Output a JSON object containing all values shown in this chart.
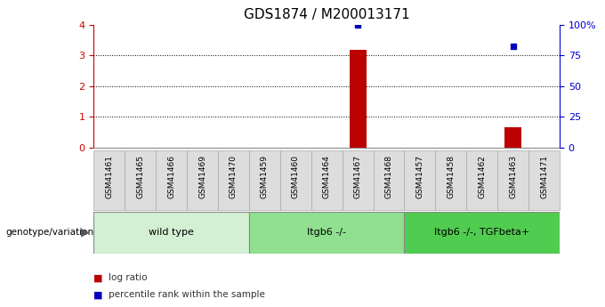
{
  "title": "GDS1874 / M200013171",
  "samples": [
    "GSM41461",
    "GSM41465",
    "GSM41466",
    "GSM41469",
    "GSM41470",
    "GSM41459",
    "GSM41460",
    "GSM41464",
    "GSM41467",
    "GSM41468",
    "GSM41457",
    "GSM41458",
    "GSM41462",
    "GSM41463",
    "GSM41471"
  ],
  "log_ratio": [
    0,
    0,
    0,
    0,
    0,
    0,
    0,
    0,
    3.18,
    0,
    0,
    0,
    0,
    0.65,
    0
  ],
  "percentile_rank": [
    null,
    null,
    null,
    null,
    null,
    null,
    null,
    null,
    100,
    null,
    null,
    null,
    null,
    82,
    null
  ],
  "groups": [
    {
      "label": "wild type",
      "start": 0,
      "end": 5
    },
    {
      "label": "Itgb6 -/-",
      "start": 5,
      "end": 10
    },
    {
      "label": "Itgb6 -/-, TGFbeta+",
      "start": 10,
      "end": 15
    }
  ],
  "group_colors": [
    "#d4f0d4",
    "#90e090",
    "#50cc50"
  ],
  "ylim_left": [
    0,
    4
  ],
  "ylim_right": [
    0,
    100
  ],
  "yticks_left": [
    0,
    1,
    2,
    3,
    4
  ],
  "yticks_right": [
    0,
    25,
    50,
    75,
    100
  ],
  "yticklabels_right": [
    "0",
    "25",
    "50",
    "75",
    "100%"
  ],
  "bar_color": "#bb0000",
  "dot_color": "#0000bb",
  "background_color": "#ffffff",
  "left_tick_color": "#cc0000",
  "right_tick_color": "#0000cc",
  "sample_box_color": "#dddddd",
  "sample_box_edge": "#aaaaaa",
  "legend_items": [
    {
      "label": "log ratio",
      "color": "#bb0000"
    },
    {
      "label": "percentile rank within the sample",
      "color": "#0000bb"
    }
  ],
  "genotype_label": "genotype/variation",
  "bar_width": 0.55,
  "title_fontsize": 11,
  "tick_fontsize": 8,
  "sample_fontsize": 6.5,
  "group_fontsize": 8,
  "legend_fontsize": 7.5
}
